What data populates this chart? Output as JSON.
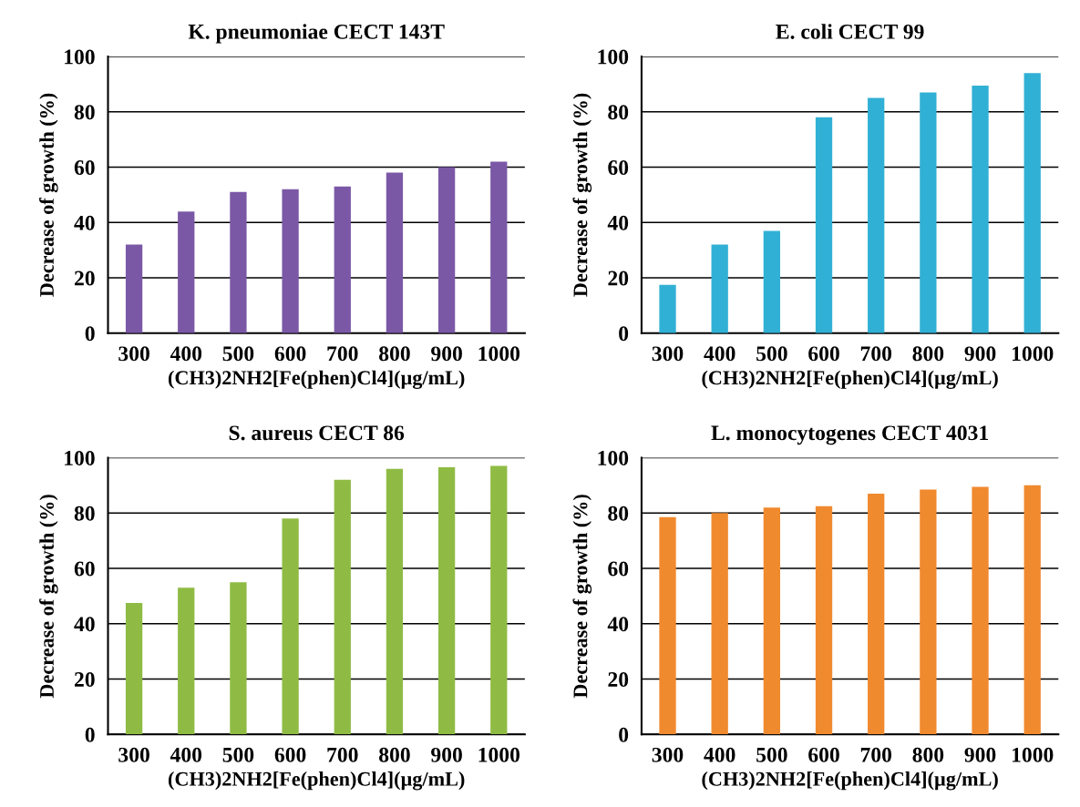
{
  "chart_data": [
    {
      "type": "bar",
      "title": "K. pneumoniae CECT 143T",
      "xlabel": "(CH3)2NH2[Fe(phen)Cl4](µg/mL)",
      "ylabel": "Decrease of growth (%)",
      "categories": [
        "300",
        "400",
        "500",
        "600",
        "700",
        "800",
        "900",
        "1000"
      ],
      "values": [
        32,
        44,
        51,
        52,
        53,
        58,
        60,
        62
      ],
      "color": "#7b58a6",
      "ylim": [
        0,
        100
      ],
      "yticks": [
        0,
        20,
        40,
        60,
        80,
        100
      ],
      "grid": "y"
    },
    {
      "type": "bar",
      "title": "E. coli CECT 99",
      "xlabel": "(CH3)2NH2[Fe(phen)Cl4](µg/mL)",
      "ylabel": "Decrease of growth (%)",
      "categories": [
        "300",
        "400",
        "500",
        "600",
        "700",
        "800",
        "900",
        "1000"
      ],
      "values": [
        17.5,
        32,
        37,
        78,
        85,
        87,
        89.5,
        94
      ],
      "color": "#31b0d5",
      "ylim": [
        0,
        100
      ],
      "yticks": [
        0,
        20,
        40,
        60,
        80,
        100
      ],
      "grid": "y"
    },
    {
      "type": "bar",
      "title": "S. aureus CECT 86",
      "xlabel": "(CH3)2NH2[Fe(phen)Cl4](µg/mL)",
      "ylabel": "Decrease of growth (%)",
      "categories": [
        "300",
        "400",
        "500",
        "600",
        "700",
        "800",
        "900",
        "1000"
      ],
      "values": [
        47.5,
        53,
        55,
        78,
        92,
        96,
        96.5,
        97
      ],
      "color": "#8fbb44",
      "ylim": [
        0,
        100
      ],
      "yticks": [
        0,
        20,
        40,
        60,
        80,
        100
      ],
      "grid": "y"
    },
    {
      "type": "bar",
      "title": "L. monocytogenes CECT 4031",
      "xlabel": "(CH3)2NH2[Fe(phen)Cl4](µg/mL)",
      "ylabel": "Decrease of growth (%)",
      "categories": [
        "300",
        "400",
        "500",
        "600",
        "700",
        "800",
        "900",
        "1000"
      ],
      "values": [
        78.5,
        80,
        82,
        82.5,
        87,
        88.5,
        89.5,
        90
      ],
      "color": "#f08a2e",
      "ylim": [
        0,
        100
      ],
      "yticks": [
        0,
        20,
        40,
        60,
        80,
        100
      ],
      "grid": "y"
    }
  ]
}
